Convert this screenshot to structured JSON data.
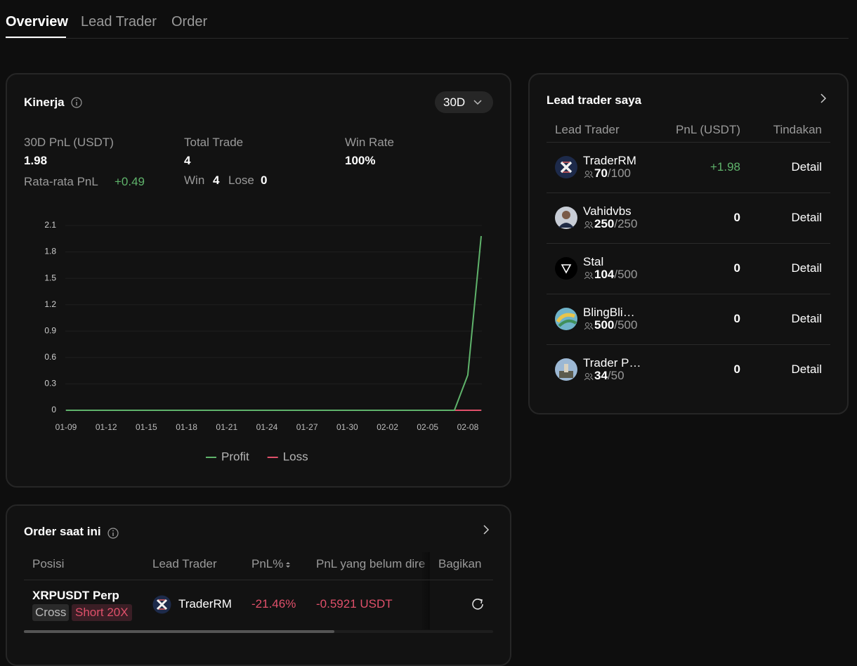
{
  "tabs": [
    "Overview",
    "Lead Trader",
    "Order"
  ],
  "performance": {
    "title": "Kinerja",
    "period": "30D",
    "stats": {
      "pnl_label": "30D PnL (USDT)",
      "pnl": "1.98",
      "avg_label": "Rata-rata PnL",
      "avg": "+0.49",
      "trades_label": "Total Trade",
      "trades": "4",
      "win_label": "Win",
      "win": "4",
      "lose_label": "Lose",
      "lose": "0",
      "winrate_label": "Win Rate",
      "winrate": "100%"
    }
  },
  "chart_data": {
    "type": "line",
    "categories": [
      "01-09",
      null,
      null,
      "01-12",
      null,
      null,
      "01-15",
      null,
      null,
      "01-18",
      null,
      null,
      "01-21",
      null,
      null,
      "01-24",
      null,
      null,
      "01-27",
      null,
      null,
      "01-30",
      null,
      null,
      "02-02",
      null,
      null,
      "02-05",
      null,
      null,
      "02-08",
      null
    ],
    "series": [
      {
        "name": "Profit",
        "color": "#5fb36b",
        "values": [
          0,
          0,
          0,
          0,
          0,
          0,
          0,
          0,
          0,
          0,
          0,
          0,
          0,
          0,
          0,
          0,
          0,
          0,
          0,
          0,
          0,
          0,
          0,
          0,
          0,
          0,
          0,
          0,
          0,
          0,
          0.4,
          1.98
        ]
      },
      {
        "name": "Loss",
        "color": "#e0506a",
        "values": [
          0,
          0,
          0,
          0,
          0,
          0,
          0,
          0,
          0,
          0,
          0,
          0,
          0,
          0,
          0,
          0,
          0,
          0,
          0,
          0,
          0,
          0,
          0,
          0,
          0,
          0,
          0,
          0,
          0,
          0,
          0,
          0
        ]
      }
    ],
    "ylim": [
      0,
      2.1
    ],
    "yticks": [
      0,
      0.3,
      0.6,
      0.9,
      1.2,
      1.5,
      1.8,
      2.1
    ],
    "grid": true
  },
  "current_orders": {
    "title": "Order saat ini",
    "columns": [
      "Posisi",
      "Lead Trader",
      "PnL%",
      "PnL yang belum dire",
      "Bagikan"
    ],
    "rows": [
      {
        "symbol": "XRPUSDT Perp",
        "margin": "Cross",
        "side": "Short 20X",
        "trader": "TraderRM",
        "pnl_pct": "-21.46%",
        "pnl": "-0.5921 USDT"
      }
    ]
  },
  "my_lead_traders": {
    "title": "Lead trader saya",
    "columns": [
      "Lead Trader",
      "PnL (USDT)",
      "Tindakan"
    ],
    "rows": [
      {
        "name": "TraderRM",
        "followers": "70",
        "capacity": "/100",
        "pnl": "+1.98",
        "action": "Detail"
      },
      {
        "name": "Vahidvbs",
        "followers": "250",
        "capacity": "/250",
        "pnl": "0",
        "action": "Detail"
      },
      {
        "name": "Stal",
        "followers": "104",
        "capacity": "/500",
        "pnl": "0",
        "action": "Detail"
      },
      {
        "name": "BlingBli…",
        "followers": "500",
        "capacity": "/500",
        "pnl": "0",
        "action": "Detail"
      },
      {
        "name": "Trader P…",
        "followers": "34",
        "capacity": "/50",
        "pnl": "0",
        "action": "Detail"
      }
    ]
  }
}
